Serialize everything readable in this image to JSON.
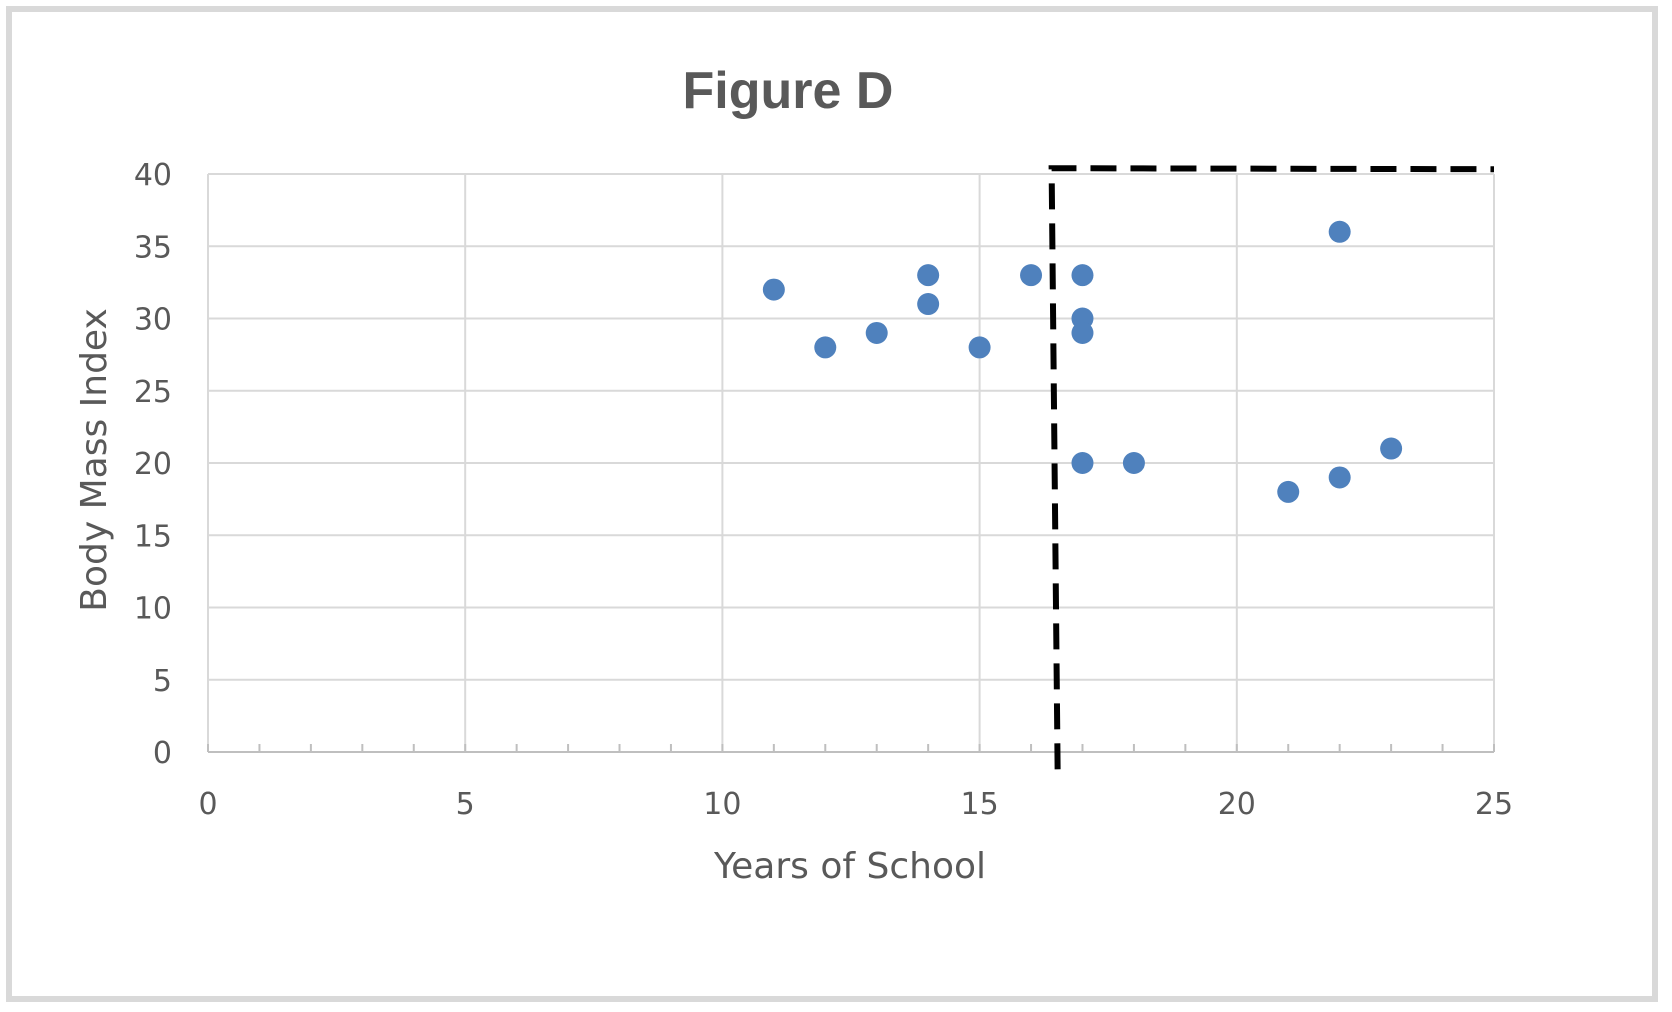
{
  "chart_data": {
    "type": "scatter",
    "title": "Figure D",
    "xlabel": "Years of School",
    "ylabel": "Body Mass Index",
    "xlim": [
      0,
      25
    ],
    "ylim": [
      0,
      40
    ],
    "x_ticks": [
      0,
      5,
      10,
      15,
      20,
      25
    ],
    "y_ticks": [
      0,
      5,
      10,
      15,
      20,
      25,
      30,
      35,
      40
    ],
    "x_minor_step": 1,
    "grid": true,
    "legend": "none",
    "series": [
      {
        "name": "Body Mass Index",
        "color": "#4f81bd",
        "points": [
          {
            "x": 11,
            "y": 32
          },
          {
            "x": 12,
            "y": 28
          },
          {
            "x": 13,
            "y": 29
          },
          {
            "x": 14,
            "y": 33
          },
          {
            "x": 14,
            "y": 31
          },
          {
            "x": 15,
            "y": 28
          },
          {
            "x": 16,
            "y": 33
          },
          {
            "x": 17,
            "y": 33
          },
          {
            "x": 17,
            "y": 30
          },
          {
            "x": 17,
            "y": 29
          },
          {
            "x": 17,
            "y": 20
          },
          {
            "x": 18,
            "y": 20
          },
          {
            "x": 21,
            "y": 18
          },
          {
            "x": 22,
            "y": 36
          },
          {
            "x": 22,
            "y": 19
          },
          {
            "x": 23,
            "y": 21
          }
        ]
      }
    ],
    "annotations": [
      {
        "type": "dashed-region",
        "description": "dashed boundary for years of school above 16",
        "x_start": 16.4,
        "x_end": 25,
        "y_top": 40.4,
        "y_bottom": -1.2,
        "color": "#000000"
      }
    ]
  }
}
